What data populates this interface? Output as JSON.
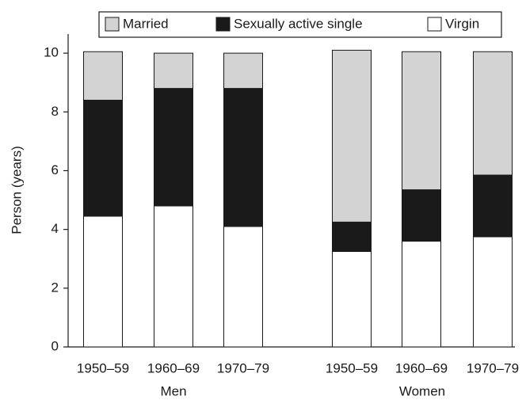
{
  "chart_data": {
    "type": "stacked_bar",
    "y_label": "Person (years)",
    "categories": [
      "1950–59",
      "1960–69",
      "1970–79",
      "1950–59",
      "1960–69",
      "1970–79"
    ],
    "group_labels": [
      "Men",
      "Women"
    ],
    "series": [
      {
        "name": "Married",
        "color": "#d3d3d3",
        "values": [
          1.65,
          1.2,
          1.2,
          5.85,
          4.7,
          4.2
        ]
      },
      {
        "name": "Sexually active single",
        "color": "#1a1a1a",
        "values": [
          3.95,
          4.0,
          4.7,
          1.0,
          1.75,
          2.1
        ]
      },
      {
        "name": "Virgin",
        "color": "#ffffff",
        "values": [
          4.45,
          4.8,
          4.1,
          3.25,
          3.6,
          3.75
        ]
      }
    ],
    "ylim": [
      0,
      10.65
    ],
    "yticks": [
      0,
      2,
      4,
      6,
      8,
      10
    ],
    "legend": "top"
  }
}
